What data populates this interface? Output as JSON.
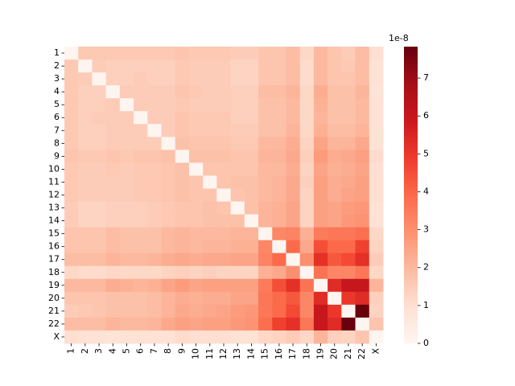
{
  "chart_data": {
    "type": "heatmap",
    "categories": [
      "1",
      "2",
      "3",
      "4",
      "5",
      "6",
      "7",
      "8",
      "9",
      "10",
      "11",
      "12",
      "13",
      "14",
      "15",
      "16",
      "17",
      "18",
      "19",
      "20",
      "21",
      "22",
      "X"
    ],
    "colormap": "Reds",
    "zlim": [
      0,
      7.83
    ],
    "zticks": [
      0,
      1,
      2,
      3,
      4,
      5,
      6,
      7
    ],
    "scale_label": "1e-8",
    "values": [
      [
        0,
        1.6,
        1.6,
        1.6,
        1.6,
        1.6,
        1.6,
        1.6,
        1.7,
        1.6,
        1.6,
        1.6,
        1.5,
        1.5,
        1.7,
        1.7,
        1.9,
        1.2,
        2.0,
        1.7,
        1.5,
        1.9,
        1.0
      ],
      [
        1.6,
        0,
        1.5,
        1.4,
        1.4,
        1.4,
        1.4,
        1.4,
        1.6,
        1.5,
        1.5,
        1.5,
        1.3,
        1.3,
        1.7,
        1.7,
        1.9,
        1.1,
        2.0,
        1.7,
        1.6,
        1.9,
        0.9
      ],
      [
        1.6,
        1.5,
        0,
        1.4,
        1.4,
        1.5,
        1.4,
        1.4,
        1.6,
        1.5,
        1.5,
        1.5,
        1.3,
        1.3,
        1.7,
        1.7,
        1.9,
        1.1,
        2.0,
        1.7,
        1.7,
        1.9,
        0.9
      ],
      [
        1.6,
        1.4,
        1.4,
        0,
        1.5,
        1.5,
        1.5,
        1.5,
        1.7,
        1.6,
        1.5,
        1.5,
        1.4,
        1.4,
        1.9,
        1.9,
        2.1,
        1.2,
        2.3,
        1.8,
        1.8,
        2.1,
        0.8
      ],
      [
        1.6,
        1.4,
        1.4,
        1.5,
        0,
        1.5,
        1.5,
        1.5,
        1.6,
        1.5,
        1.5,
        1.5,
        1.4,
        1.4,
        1.8,
        1.8,
        2.0,
        1.2,
        2.2,
        1.8,
        1.8,
        2.0,
        0.9
      ],
      [
        1.6,
        1.4,
        1.5,
        1.5,
        1.5,
        0,
        1.5,
        1.5,
        1.7,
        1.6,
        1.6,
        1.6,
        1.4,
        1.4,
        1.8,
        1.8,
        2.0,
        1.2,
        2.1,
        1.8,
        1.8,
        2.0,
        0.9
      ],
      [
        1.6,
        1.4,
        1.4,
        1.5,
        1.5,
        1.5,
        0,
        1.5,
        1.7,
        1.6,
        1.6,
        1.6,
        1.5,
        1.5,
        1.8,
        1.8,
        2.1,
        1.2,
        2.2,
        1.9,
        1.9,
        2.1,
        0.9
      ],
      [
        1.6,
        1.4,
        1.4,
        1.5,
        1.5,
        1.5,
        1.5,
        0,
        1.8,
        1.7,
        1.7,
        1.7,
        1.6,
        1.6,
        2.0,
        2.0,
        2.3,
        1.3,
        2.5,
        2.1,
        2.1,
        2.4,
        0.9
      ],
      [
        1.7,
        1.6,
        1.6,
        1.7,
        1.6,
        1.7,
        1.7,
        1.8,
        0,
        1.8,
        1.8,
        1.8,
        1.7,
        1.7,
        2.1,
        2.1,
        2.4,
        1.4,
        2.7,
        2.3,
        2.4,
        2.6,
        1.1
      ],
      [
        1.6,
        1.5,
        1.5,
        1.6,
        1.5,
        1.6,
        1.6,
        1.7,
        1.8,
        0,
        1.7,
        1.7,
        1.7,
        1.7,
        2.0,
        2.0,
        2.3,
        1.3,
        2.5,
        2.2,
        2.3,
        2.5,
        1.0
      ],
      [
        1.6,
        1.5,
        1.5,
        1.5,
        1.5,
        1.6,
        1.6,
        1.7,
        1.8,
        1.7,
        0,
        1.7,
        1.8,
        1.8,
        2.0,
        2.1,
        2.4,
        1.4,
        2.6,
        2.3,
        2.4,
        2.6,
        1.0
      ],
      [
        1.6,
        1.5,
        1.5,
        1.5,
        1.5,
        1.6,
        1.6,
        1.7,
        1.8,
        1.7,
        1.7,
        0,
        1.7,
        1.8,
        2.0,
        2.1,
        2.4,
        1.3,
        2.6,
        2.3,
        2.5,
        2.6,
        1.0
      ],
      [
        1.5,
        1.3,
        1.3,
        1.4,
        1.4,
        1.4,
        1.5,
        1.6,
        1.7,
        1.7,
        1.8,
        1.7,
        0,
        1.8,
        2.1,
        2.2,
        2.5,
        1.3,
        2.6,
        2.5,
        2.7,
        2.8,
        0.9
      ],
      [
        1.5,
        1.3,
        1.3,
        1.4,
        1.4,
        1.4,
        1.5,
        1.6,
        1.7,
        1.7,
        1.8,
        1.8,
        1.8,
        0,
        2.1,
        2.2,
        2.5,
        1.3,
        2.6,
        2.5,
        2.8,
        2.9,
        0.9
      ],
      [
        1.7,
        1.7,
        1.7,
        1.9,
        1.8,
        1.8,
        1.8,
        2.0,
        2.1,
        2.0,
        2.0,
        2.0,
        2.1,
        2.1,
        0,
        3.2,
        3.3,
        2.2,
        3.5,
        3.6,
        3.6,
        3.8,
        1.2
      ],
      [
        1.7,
        1.7,
        1.7,
        1.9,
        1.8,
        1.8,
        1.8,
        2.0,
        2.1,
        2.0,
        2.1,
        2.1,
        2.2,
        2.2,
        3.2,
        0,
        3.9,
        2.4,
        4.5,
        3.9,
        3.9,
        4.8,
        1.3
      ],
      [
        1.9,
        1.9,
        1.9,
        2.1,
        2.0,
        2.0,
        2.1,
        2.3,
        2.4,
        2.3,
        2.4,
        2.4,
        2.5,
        2.5,
        3.3,
        3.9,
        0,
        3.0,
        5.2,
        4.3,
        4.6,
        5.2,
        1.5
      ],
      [
        1.2,
        1.1,
        1.1,
        1.2,
        1.2,
        1.2,
        1.2,
        1.3,
        1.4,
        1.3,
        1.4,
        1.3,
        1.3,
        1.3,
        2.2,
        2.4,
        3.0,
        0,
        3.7,
        3.2,
        3.2,
        3.6,
        1.2
      ],
      [
        2.0,
        2.0,
        2.0,
        2.3,
        2.2,
        2.1,
        2.2,
        2.5,
        2.7,
        2.5,
        2.6,
        2.6,
        2.6,
        2.6,
        3.5,
        4.5,
        5.2,
        3.7,
        0,
        5.3,
        6.0,
        6.0,
        2.1
      ],
      [
        1.7,
        1.7,
        1.7,
        1.8,
        1.8,
        1.8,
        1.9,
        2.1,
        2.3,
        2.2,
        2.3,
        2.3,
        2.5,
        2.5,
        3.6,
        3.9,
        4.3,
        3.2,
        5.3,
        0,
        5.0,
        5.3,
        1.4
      ],
      [
        1.5,
        1.6,
        1.7,
        1.8,
        1.8,
        1.8,
        1.9,
        2.1,
        2.4,
        2.3,
        2.4,
        2.5,
        2.7,
        2.8,
        3.6,
        3.9,
        4.6,
        3.2,
        6.0,
        5.0,
        0,
        7.8,
        1.3
      ],
      [
        1.9,
        1.9,
        1.9,
        2.1,
        2.0,
        2.0,
        2.1,
        2.4,
        2.6,
        2.5,
        2.6,
        2.6,
        2.8,
        2.9,
        3.8,
        4.8,
        5.2,
        3.6,
        6.0,
        5.3,
        7.8,
        0,
        1.7
      ],
      [
        1.0,
        0.9,
        0.9,
        0.8,
        0.9,
        0.9,
        0.9,
        0.9,
        1.1,
        1.0,
        1.0,
        1.0,
        0.9,
        0.9,
        1.2,
        1.3,
        1.5,
        1.2,
        2.1,
        1.4,
        1.3,
        1.7,
        0
      ]
    ]
  }
}
